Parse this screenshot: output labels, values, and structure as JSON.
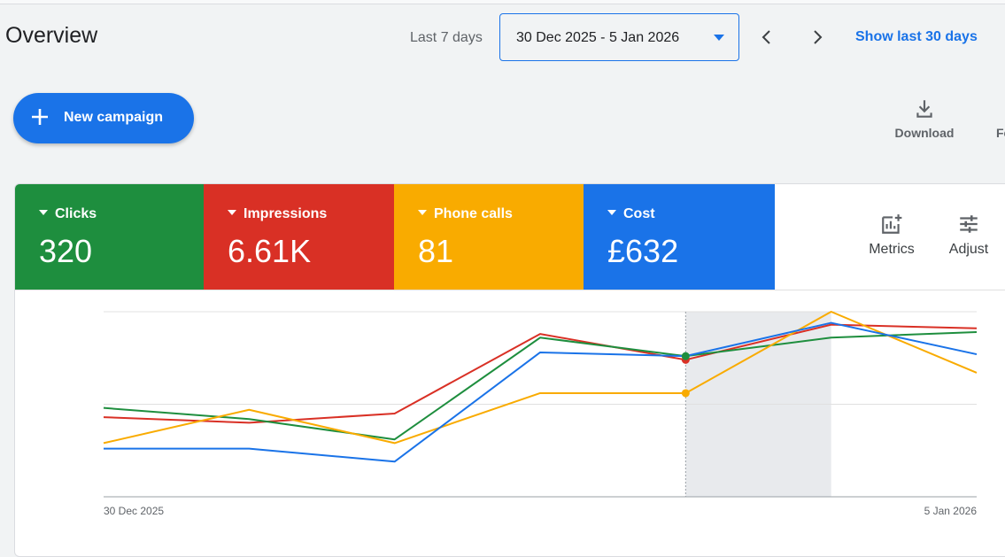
{
  "header": {
    "title": "Overview",
    "range_label": "Last 7 days",
    "date_range": "30 Dec 2025 - 5 Jan 2026",
    "show_30_label": "Show last 30 days",
    "icons": {
      "prev": "chevron-left-icon",
      "next": "chevron-right-icon",
      "dropdown": "caret-down-icon"
    }
  },
  "actions": {
    "new_campaign_label": "New campaign",
    "download_label": "Download",
    "cut_label": "Fe"
  },
  "metrics": [
    {
      "label": "Clicks",
      "value": "320",
      "color": "#1e8e3e"
    },
    {
      "label": "Impressions",
      "value": "6.61K",
      "color": "#d93025"
    },
    {
      "label": "Phone calls",
      "value": "81",
      "color": "#f9ab00"
    },
    {
      "label": "Cost",
      "value": "£632",
      "color": "#1a73e8"
    }
  ],
  "side_buttons": {
    "metrics_label": "Metrics",
    "adjust_label": "Adjust"
  },
  "chart_data": {
    "type": "line",
    "x": [
      "30 Dec 2025",
      "31 Dec 2025",
      "1 Jan 2026",
      "2 Jan 2026",
      "3 Jan 2026",
      "4 Jan 2026",
      "5 Jan 2026"
    ],
    "tick_labels": [
      "30 Dec 2025",
      "5 Jan 2026"
    ],
    "y_scale": "relative (normalized per series, no axis labels shown)",
    "ylim": [
      0,
      100
    ],
    "highlight": {
      "hover_index": 4,
      "shaded_range": [
        4,
        5
      ]
    },
    "series": [
      {
        "name": "Impressions",
        "color": "#d93025",
        "values": [
          43,
          40,
          45,
          88,
          74,
          93,
          91
        ]
      },
      {
        "name": "Clicks",
        "color": "#1e8e3e",
        "values": [
          48,
          42,
          31,
          86,
          76,
          86,
          89
        ]
      },
      {
        "name": "Phone calls",
        "color": "#f9ab00",
        "values": [
          29,
          47,
          29,
          56,
          56,
          100,
          67
        ]
      },
      {
        "name": "Cost",
        "color": "#1a73e8",
        "values": [
          26,
          26,
          19,
          78,
          76,
          94,
          77
        ]
      }
    ],
    "grid": true,
    "legend": "none"
  }
}
